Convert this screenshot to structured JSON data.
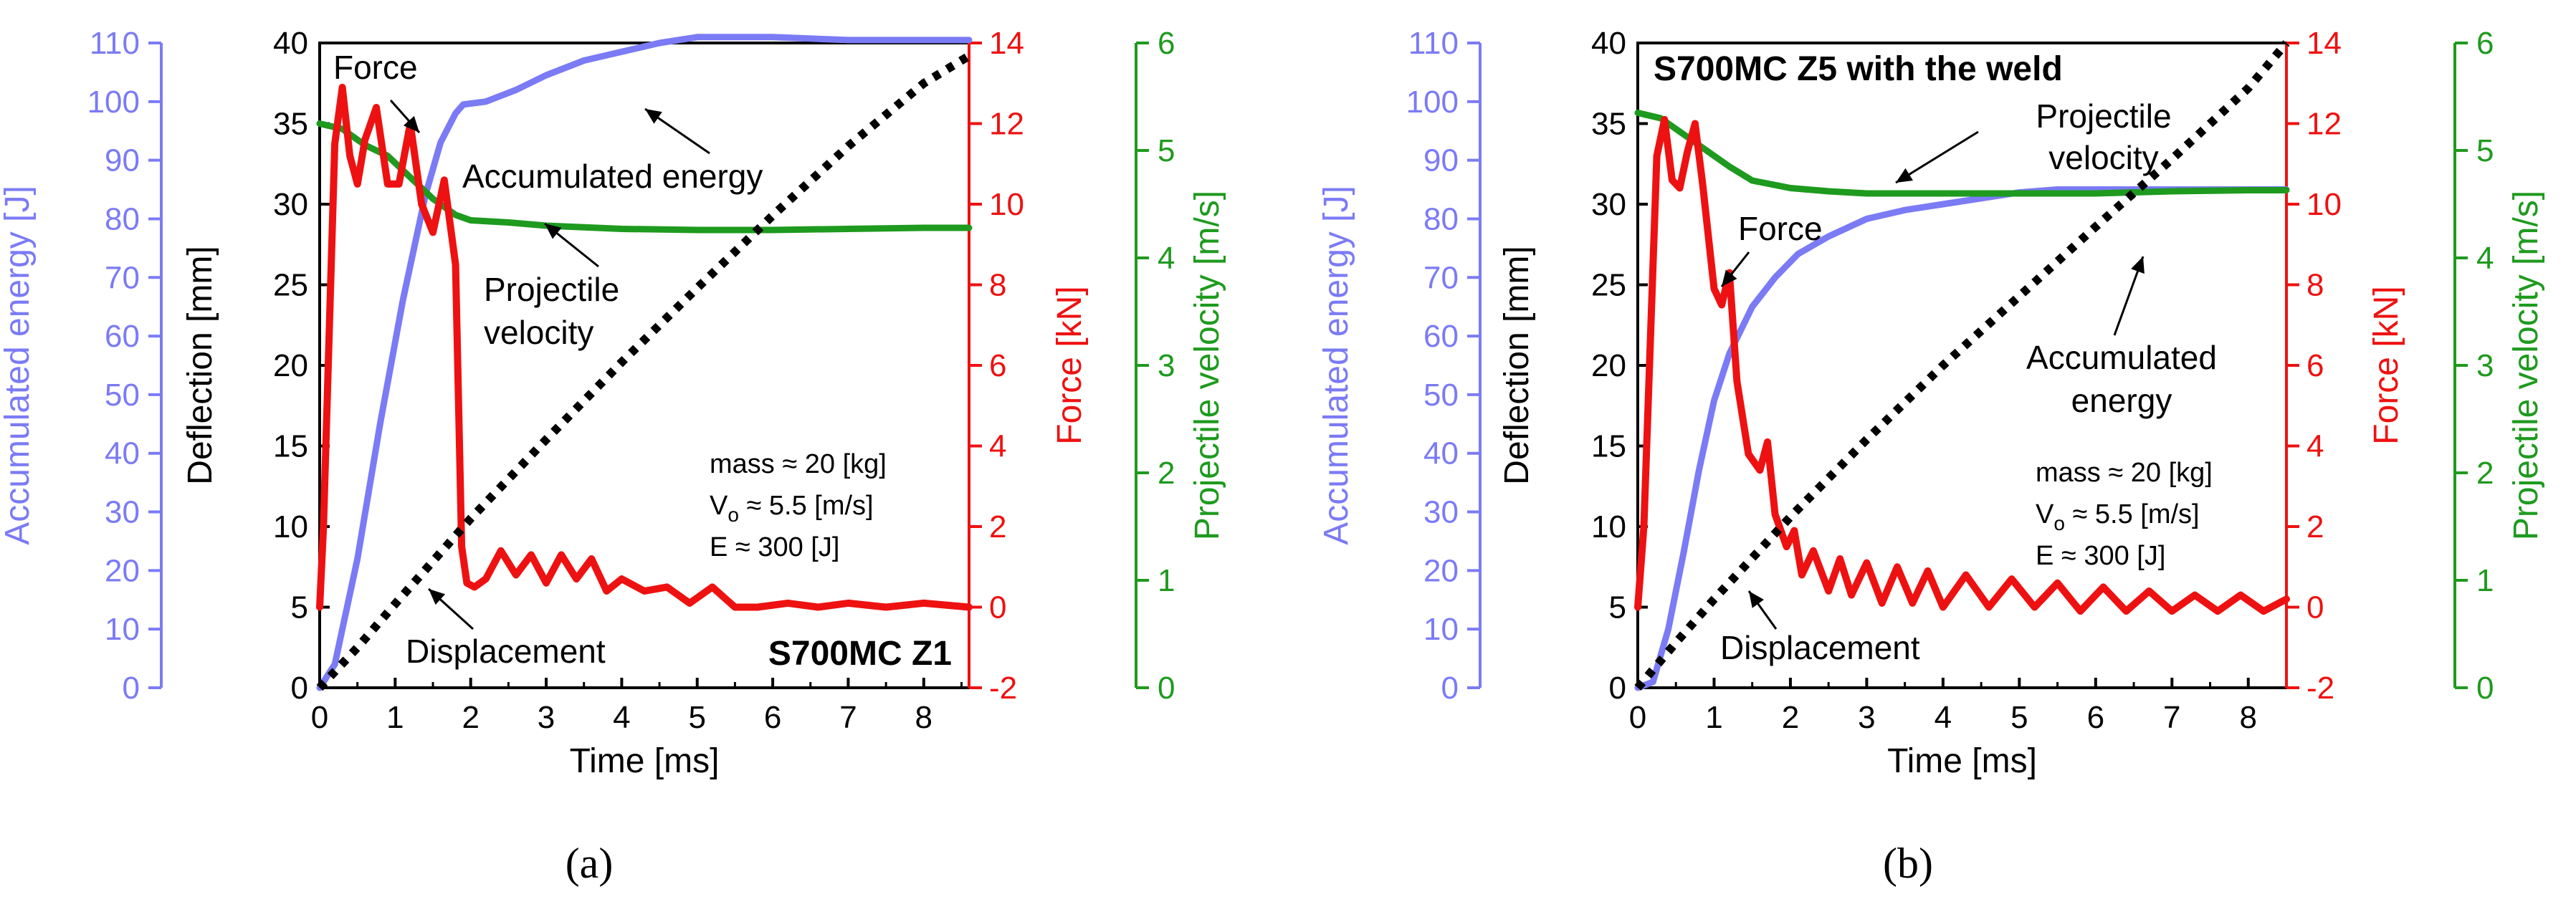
{
  "colors": {
    "energy": "#7b7bf5",
    "force": "#ee1111",
    "velocity": "#1e9a1e",
    "displacement": "#000000",
    "axis": "#000000"
  },
  "chart_data": [
    {
      "panel_label": "(a)",
      "type": "line",
      "title": "S700MC Z1",
      "xlabel": "Time [ms]",
      "xlim": [
        0,
        8.6
      ],
      "xticks": [
        "0",
        "1",
        "2",
        "3",
        "4",
        "5",
        "6",
        "7",
        "8"
      ],
      "axes": {
        "deflection": {
          "label": "Deflection [mm]",
          "lim": [
            0,
            40
          ],
          "ticks": [
            "0",
            "5",
            "10",
            "15",
            "20",
            "25",
            "30",
            "35",
            "40"
          ]
        },
        "energy": {
          "label": "Accumulated energy [J]",
          "lim": [
            0,
            110
          ],
          "ticks": [
            "0",
            "10",
            "20",
            "30",
            "40",
            "50",
            "60",
            "70",
            "80",
            "90",
            "100",
            "110"
          ]
        },
        "force": {
          "label": "Force [kN]",
          "lim": [
            -2,
            14
          ],
          "ticks": [
            "-2",
            "0",
            "2",
            "4",
            "6",
            "8",
            "10",
            "12",
            "14"
          ]
        },
        "velocity": {
          "label": "Projectile velocity [m/s]",
          "lim": [
            0,
            6
          ],
          "ticks": [
            "0",
            "1",
            "2",
            "3",
            "4",
            "5",
            "6"
          ]
        }
      },
      "series": [
        {
          "name": "Displacement",
          "axis": "deflection",
          "style": "dotted",
          "x": [
            0,
            0.5,
            1,
            2,
            3,
            4,
            5,
            6,
            7,
            8,
            8.6
          ],
          "y": [
            0,
            2.5,
            5.2,
            10.5,
            15.4,
            20.2,
            24.8,
            29.3,
            33.6,
            37.5,
            39.2
          ]
        },
        {
          "name": "Accumulated energy",
          "axis": "energy",
          "x": [
            0,
            0.2,
            0.5,
            0.8,
            1.1,
            1.4,
            1.6,
            1.8,
            1.9,
            2.2,
            2.6,
            3,
            3.5,
            4,
            4.5,
            5,
            5.5,
            6,
            7,
            8,
            8.6
          ],
          "y": [
            0,
            4,
            22,
            45,
            66,
            84,
            93,
            98,
            99.5,
            100,
            102,
            104.5,
            107,
            108.5,
            110,
            111,
            111,
            111,
            110.5,
            110.5,
            110.5
          ]
        },
        {
          "name": "Force",
          "axis": "force",
          "x": [
            0,
            0.05,
            0.2,
            0.3,
            0.4,
            0.5,
            0.6,
            0.75,
            0.9,
            1.05,
            1.2,
            1.35,
            1.5,
            1.65,
            1.8,
            1.88,
            1.95,
            2.05,
            2.2,
            2.4,
            2.6,
            2.8,
            3,
            3.2,
            3.4,
            3.6,
            3.8,
            4,
            4.3,
            4.6,
            4.9,
            5.2,
            5.5,
            5.8,
            6.2,
            6.6,
            7,
            7.5,
            8,
            8.6
          ],
          "y": [
            0,
            2,
            11.5,
            12.9,
            11.2,
            10.5,
            11.6,
            12.4,
            10.5,
            10.5,
            12,
            10,
            9.3,
            10.6,
            8.5,
            1.5,
            0.6,
            0.5,
            0.7,
            1.4,
            0.8,
            1.3,
            0.6,
            1.3,
            0.7,
            1.2,
            0.4,
            0.7,
            0.4,
            0.5,
            0.1,
            0.5,
            0,
            0,
            0.1,
            0,
            0.1,
            0,
            0.1,
            0
          ]
        },
        {
          "name": "Projectile velocity",
          "axis": "velocity",
          "x": [
            0,
            0.3,
            0.6,
            0.9,
            1.2,
            1.5,
            1.8,
            2,
            2.5,
            3,
            4,
            5,
            6,
            7,
            8,
            8.6
          ],
          "y": [
            5.25,
            5.2,
            5.05,
            4.95,
            4.75,
            4.55,
            4.4,
            4.35,
            4.33,
            4.3,
            4.27,
            4.26,
            4.26,
            4.27,
            4.28,
            4.28
          ]
        }
      ],
      "annotations": [
        {
          "text": "Force",
          "lines": [
            "Force"
          ]
        },
        {
          "text": "Accumulated energy",
          "lines": [
            "Accumulated energy"
          ]
        },
        {
          "text": "Projectile velocity",
          "lines": [
            "Projectile",
            "velocity"
          ]
        },
        {
          "text": "Displacement",
          "lines": [
            "Displacement"
          ]
        }
      ],
      "info": {
        "mass": "mass ≈ 20 [kg]",
        "v_prefix": "V",
        "v_sub": "o",
        "v_rest": " ≈ 5.5 [m/s]",
        "energy": "E ≈ 300 [J]"
      }
    },
    {
      "panel_label": "(b)",
      "type": "line",
      "title": "S700MC Z5 with the weld",
      "xlabel": "Time [ms]",
      "xlim": [
        0,
        8.5
      ],
      "xticks": [
        "0",
        "1",
        "2",
        "3",
        "4",
        "5",
        "6",
        "7",
        "8"
      ],
      "axes": {
        "deflection": {
          "label": "Deflection [mm]",
          "lim": [
            0,
            40
          ],
          "ticks": [
            "0",
            "5",
            "10",
            "15",
            "20",
            "25",
            "30",
            "35",
            "40"
          ]
        },
        "energy": {
          "label": "Accumulated energy [J]",
          "lim": [
            0,
            110
          ],
          "ticks": [
            "0",
            "10",
            "20",
            "30",
            "40",
            "50",
            "60",
            "70",
            "80",
            "90",
            "100",
            "110"
          ]
        },
        "force": {
          "label": "Force [kN]",
          "lim": [
            -2,
            14
          ],
          "ticks": [
            "-2",
            "0",
            "2",
            "4",
            "6",
            "8",
            "10",
            "12",
            "14"
          ]
        },
        "velocity": {
          "label": "Projectile velocity [m/s]",
          "lim": [
            0,
            6
          ],
          "ticks": [
            "0",
            "1",
            "2",
            "3",
            "4",
            "5",
            "6"
          ]
        }
      },
      "series": [
        {
          "name": "Displacement",
          "axis": "deflection",
          "style": "dotted",
          "x": [
            0,
            0.5,
            1,
            2,
            3,
            4,
            5,
            6,
            7,
            8,
            8.5
          ],
          "y": [
            0,
            2.8,
            5.5,
            10.6,
            15.4,
            20,
            24.3,
            28.6,
            32.8,
            37.2,
            40
          ]
        },
        {
          "name": "Accumulated energy",
          "axis": "energy",
          "x": [
            0,
            0.2,
            0.4,
            0.6,
            0.8,
            1,
            1.2,
            1.5,
            1.8,
            2.1,
            2.5,
            3,
            3.5,
            4,
            4.5,
            5,
            5.5,
            6,
            7,
            8,
            8.5
          ],
          "y": [
            0,
            1,
            10,
            23,
            37,
            49,
            57,
            65,
            70,
            74,
            77,
            80,
            81.5,
            82.5,
            83.5,
            84.5,
            85,
            85,
            85,
            85,
            85
          ]
        },
        {
          "name": "Force",
          "axis": "force",
          "x": [
            0,
            0.08,
            0.25,
            0.35,
            0.45,
            0.55,
            0.65,
            0.75,
            0.85,
            1,
            1.1,
            1.2,
            1.3,
            1.45,
            1.6,
            1.7,
            1.8,
            1.95,
            2.05,
            2.15,
            2.3,
            2.5,
            2.65,
            2.8,
            3,
            3.2,
            3.4,
            3.6,
            3.8,
            4,
            4.3,
            4.6,
            4.9,
            5.2,
            5.5,
            5.8,
            6.1,
            6.4,
            6.7,
            7,
            7.3,
            7.6,
            7.9,
            8.2,
            8.5
          ],
          "y": [
            0,
            2,
            11.2,
            12.1,
            10.6,
            10.4,
            11.3,
            12,
            10.5,
            7.9,
            7.5,
            8.3,
            5.6,
            3.8,
            3.4,
            4.1,
            2.3,
            1.5,
            1.9,
            0.8,
            1.4,
            0.4,
            1.2,
            0.3,
            1.1,
            0.1,
            1,
            0.1,
            0.9,
            0,
            0.8,
            0,
            0.7,
            0,
            0.6,
            -0.1,
            0.5,
            -0.1,
            0.4,
            -0.1,
            0.3,
            -0.1,
            0.3,
            -0.1,
            0.2
          ]
        },
        {
          "name": "Projectile velocity",
          "axis": "velocity",
          "x": [
            0,
            0.3,
            0.6,
            0.9,
            1.2,
            1.5,
            2,
            2.5,
            3,
            4,
            5,
            6,
            7,
            8,
            8.5
          ],
          "y": [
            5.35,
            5.3,
            5.15,
            5,
            4.85,
            4.72,
            4.65,
            4.62,
            4.6,
            4.6,
            4.6,
            4.6,
            4.62,
            4.63,
            4.63
          ]
        }
      ],
      "annotations": [
        {
          "text": "Projectile velocity",
          "lines": [
            "Projectile",
            "velocity"
          ]
        },
        {
          "text": "Force",
          "lines": [
            "Force"
          ]
        },
        {
          "text": "Accumulated energy",
          "lines": [
            "Accumulated",
            "energy"
          ]
        },
        {
          "text": "Displacement",
          "lines": [
            "Displacement"
          ]
        }
      ],
      "info": {
        "mass": "mass ≈ 20 [kg]",
        "v_prefix": "V",
        "v_sub": "o",
        "v_rest": " ≈ 5.5 [m/s]",
        "energy": "E ≈ 300 [J]"
      }
    }
  ]
}
